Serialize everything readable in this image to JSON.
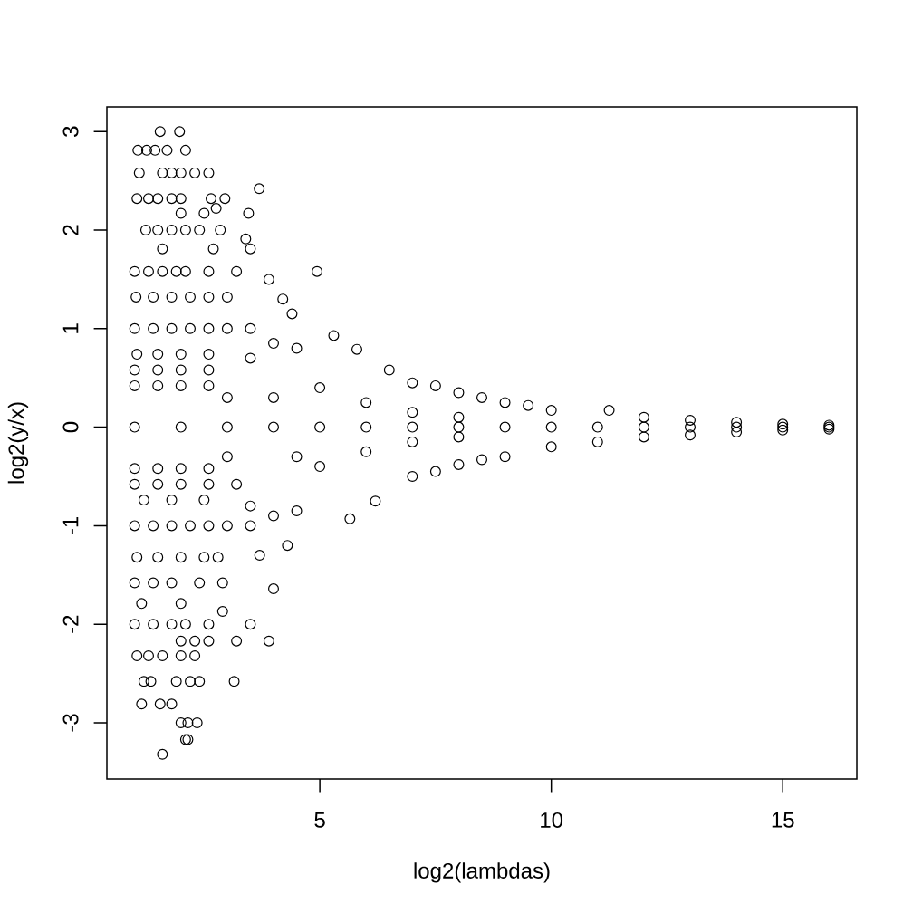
{
  "chart_data": {
    "type": "scatter",
    "xlabel": "log2(lambdas)",
    "ylabel": "log2(y/x)",
    "color": "#000000",
    "marker": "circle",
    "xlim": [
      0.4,
      16.6
    ],
    "ylim": [
      -3.57,
      3.25
    ],
    "xticks": [
      5,
      10,
      15
    ],
    "yticks": [
      -3,
      -2,
      -1,
      0,
      1,
      2,
      3
    ],
    "x": [
      1.55,
      1.97,
      1.07,
      1.26,
      1.44,
      1.7,
      2.1,
      1.1,
      1.6,
      1.8,
      2,
      2.3,
      2.6,
      3.69,
      1.05,
      1.3,
      1.5,
      1.8,
      2,
      2.65,
      2.95,
      2,
      2.5,
      3.46,
      2.76,
      1.24,
      1.5,
      1.8,
      2.1,
      2.4,
      2.85,
      3.4,
      1.6,
      2.7,
      3.5,
      1,
      1.3,
      1.6,
      1.9,
      2.1,
      2.6,
      3.2,
      3.9,
      4.94,
      1.03,
      1.4,
      1.8,
      2.2,
      2.6,
      3,
      4.2,
      1,
      1.4,
      1.8,
      2.2,
      2.6,
      3,
      3.5,
      4.4,
      1.05,
      1.5,
      2,
      2.6,
      1,
      1.5,
      2,
      2.6,
      1,
      1.5,
      2,
      2.6,
      1,
      2,
      3,
      4,
      5,
      6,
      7,
      8,
      9,
      10,
      11,
      12,
      13,
      14,
      15,
      16,
      3.5,
      4,
      4.5,
      5.3,
      5.8,
      6.5,
      7,
      7.5,
      8,
      8.5,
      9,
      9.5,
      10,
      11.25,
      12,
      13,
      14,
      15,
      16,
      3,
      4,
      4.5,
      5,
      5,
      6,
      6,
      7,
      7,
      8,
      8,
      3,
      3.5,
      4,
      4.5,
      5.65,
      6.2,
      7,
      7.5,
      8,
      8.5,
      9,
      10,
      11,
      12,
      13,
      14,
      15,
      16,
      1,
      1.5,
      2,
      2.6,
      1,
      1.5,
      2,
      2.6,
      3.2,
      1.2,
      1.8,
      2.5,
      1,
      1.4,
      1.8,
      2.2,
      2.6,
      3,
      3.5,
      4.3,
      3.7,
      1.05,
      1.5,
      2,
      2.5,
      2.8,
      1,
      1.4,
      1.8,
      2.4,
      2.9,
      1.15,
      2,
      2.9,
      4,
      1,
      1.4,
      1.8,
      2.1,
      2.6,
      3.5,
      2,
      2.3,
      2.6,
      3.2,
      3.9,
      1.05,
      1.3,
      1.6,
      2,
      2.3,
      1.2,
      1.35,
      1.9,
      2.2,
      2.4,
      3.15,
      1.15,
      1.55,
      1.8,
      2,
      2.15,
      2.35,
      2.1,
      2.15,
      1.6
    ],
    "values": [
      3,
      3,
      2.81,
      2.81,
      2.81,
      2.81,
      2.81,
      2.58,
      2.58,
      2.58,
      2.58,
      2.58,
      2.58,
      2.42,
      2.32,
      2.32,
      2.32,
      2.32,
      2.32,
      2.32,
      2.32,
      2.17,
      2.17,
      2.17,
      2.22,
      2,
      2,
      2,
      2,
      2,
      2,
      1.91,
      1.81,
      1.81,
      1.81,
      1.58,
      1.58,
      1.58,
      1.58,
      1.58,
      1.58,
      1.58,
      1.5,
      1.58,
      1.32,
      1.32,
      1.32,
      1.32,
      1.32,
      1.32,
      1.3,
      1,
      1,
      1,
      1,
      1,
      1,
      1,
      1.15,
      0.74,
      0.74,
      0.74,
      0.74,
      0.58,
      0.58,
      0.58,
      0.58,
      0.42,
      0.42,
      0.42,
      0.42,
      0,
      0,
      0,
      0,
      0,
      0,
      0,
      0,
      0,
      0,
      0,
      0,
      0,
      0,
      0,
      0,
      0.7,
      0.85,
      0.8,
      0.93,
      0.79,
      0.58,
      0.45,
      0.42,
      0.35,
      0.3,
      0.25,
      0.22,
      0.17,
      0.17,
      0.1,
      0.07,
      0.05,
      0.03,
      0.02,
      0.3,
      0.3,
      -0.3,
      0.4,
      -0.4,
      0.25,
      -0.25,
      0.15,
      -0.15,
      0.1,
      -0.1,
      -0.3,
      -0.8,
      -0.9,
      -0.85,
      -0.93,
      -0.75,
      -0.5,
      -0.45,
      -0.38,
      -0.33,
      -0.3,
      -0.2,
      -0.15,
      -0.1,
      -0.08,
      -0.05,
      -0.03,
      -0.02,
      -0.42,
      -0.42,
      -0.42,
      -0.42,
      -0.58,
      -0.58,
      -0.58,
      -0.58,
      -0.58,
      -0.74,
      -0.74,
      -0.74,
      -1,
      -1,
      -1,
      -1,
      -1,
      -1,
      -1,
      -1.2,
      -1.3,
      -1.32,
      -1.32,
      -1.32,
      -1.32,
      -1.32,
      -1.58,
      -1.58,
      -1.58,
      -1.58,
      -1.58,
      -1.79,
      -1.79,
      -1.87,
      -1.64,
      -2,
      -2,
      -2,
      -2,
      -2,
      -2,
      -2.17,
      -2.17,
      -2.17,
      -2.17,
      -2.17,
      -2.32,
      -2.32,
      -2.32,
      -2.32,
      -2.32,
      -2.58,
      -2.58,
      -2.58,
      -2.58,
      -2.58,
      -2.58,
      -2.81,
      -2.81,
      -2.81,
      -3,
      -3,
      -3,
      -3.17,
      -3.17,
      -3.32
    ]
  }
}
